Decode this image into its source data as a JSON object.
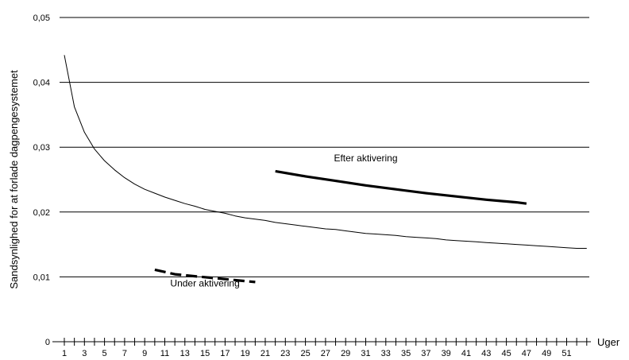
{
  "chart_data": {
    "type": "line",
    "title": "",
    "ylabel": "Sandsynlighed for at forlade dagpengesystemet",
    "xlabel": "Uger",
    "ylim": [
      0,
      0.05
    ],
    "xlim": [
      1,
      53
    ],
    "y_ticks": [
      0,
      0.01,
      0.02,
      0.03,
      0.04,
      0.05
    ],
    "y_tick_labels": [
      "0",
      "0,01",
      "0,02",
      "0,03",
      "0,04",
      "0,05"
    ],
    "x_tick_labels": [
      "1",
      "3",
      "5",
      "7",
      "9",
      "11",
      "13",
      "15",
      "17",
      "19",
      "21",
      "23",
      "25",
      "27",
      "29",
      "31",
      "33",
      "35",
      "37",
      "39",
      "41",
      "43",
      "45",
      "47",
      "49",
      "51"
    ],
    "grid": "horizontal",
    "series": [
      {
        "style": "thin",
        "x": [
          1,
          2,
          3,
          4,
          5,
          6,
          7,
          8,
          9,
          10,
          11,
          12,
          13,
          14,
          15,
          16,
          17,
          18,
          19,
          20,
          21,
          22,
          23,
          24,
          25,
          26,
          27,
          28,
          29,
          30,
          31,
          32,
          33,
          34,
          35,
          36,
          37,
          38,
          39,
          40,
          41,
          42,
          43,
          44,
          45,
          46,
          47,
          48,
          49,
          50,
          51,
          52,
          53
        ],
        "values": [
          0.0442,
          0.0362,
          0.0323,
          0.0297,
          0.0279,
          0.0265,
          0.0253,
          0.0243,
          0.0235,
          0.0229,
          0.0223,
          0.0218,
          0.0213,
          0.0209,
          0.0204,
          0.0201,
          0.0198,
          0.0194,
          0.0191,
          0.0189,
          0.0187,
          0.0184,
          0.0182,
          0.018,
          0.0178,
          0.0176,
          0.0174,
          0.0173,
          0.0171,
          0.0169,
          0.0167,
          0.0166,
          0.0165,
          0.0164,
          0.0162,
          0.0161,
          0.016,
          0.0159,
          0.0157,
          0.0156,
          0.0155,
          0.0154,
          0.0153,
          0.0152,
          0.0151,
          0.015,
          0.0149,
          0.0148,
          0.0147,
          0.0146,
          0.0145,
          0.0144,
          0.0144
        ]
      },
      {
        "name": "Efter aktivering",
        "style": "thick",
        "x": [
          22,
          25,
          28,
          31,
          34,
          37,
          40,
          43,
          46,
          47
        ],
        "values": [
          0.0263,
          0.0255,
          0.0248,
          0.0241,
          0.0235,
          0.0229,
          0.0224,
          0.0219,
          0.0215,
          0.0213
        ]
      },
      {
        "name": "Under aktivering",
        "style": "dashed",
        "x": [
          10,
          12,
          14,
          16,
          18,
          20
        ],
        "values": [
          0.0111,
          0.0104,
          0.0101,
          0.0098,
          0.0095,
          0.0092
        ]
      }
    ],
    "annotations": [
      {
        "text": "Efter aktivering",
        "x": 31,
        "y": 0.0278
      },
      {
        "text": "Under aktivering",
        "x": 15,
        "y": 0.0085
      }
    ]
  }
}
